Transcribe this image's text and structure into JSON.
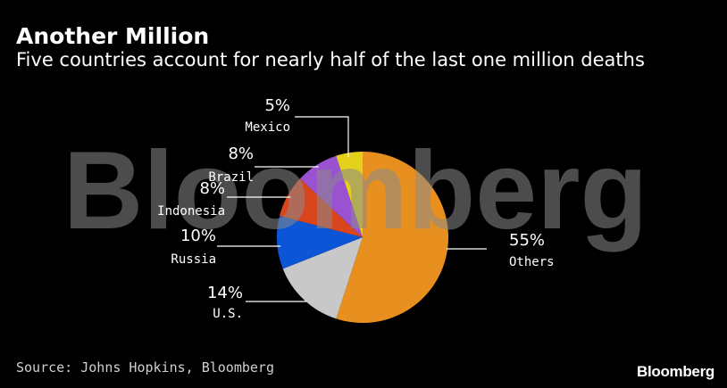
{
  "header": {
    "title": "Another Million",
    "subtitle": "Five countries account for nearly half of the last one million deaths"
  },
  "footer": {
    "source": "Source: Johns Hopkins, Bloomberg",
    "brand": "Bloomberg"
  },
  "watermark": "Bloomberg",
  "chart_data": {
    "type": "pie",
    "slices": [
      {
        "label": "Others",
        "value": 55,
        "value_label": "55%",
        "color": "#e8901f"
      },
      {
        "label": "U.S.",
        "value": 14,
        "value_label": "14%",
        "color": "#c8c8c8"
      },
      {
        "label": "Russia",
        "value": 10,
        "value_label": "10%",
        "color": "#0b55d6"
      },
      {
        "label": "Indonesia",
        "value": 8,
        "value_label": "8%",
        "color": "#d9461e"
      },
      {
        "label": "Brazil",
        "value": 8,
        "value_label": "8%",
        "color": "#9b52d0"
      },
      {
        "label": "Mexico",
        "value": 5,
        "value_label": "5%",
        "color": "#e5d11b"
      }
    ]
  }
}
